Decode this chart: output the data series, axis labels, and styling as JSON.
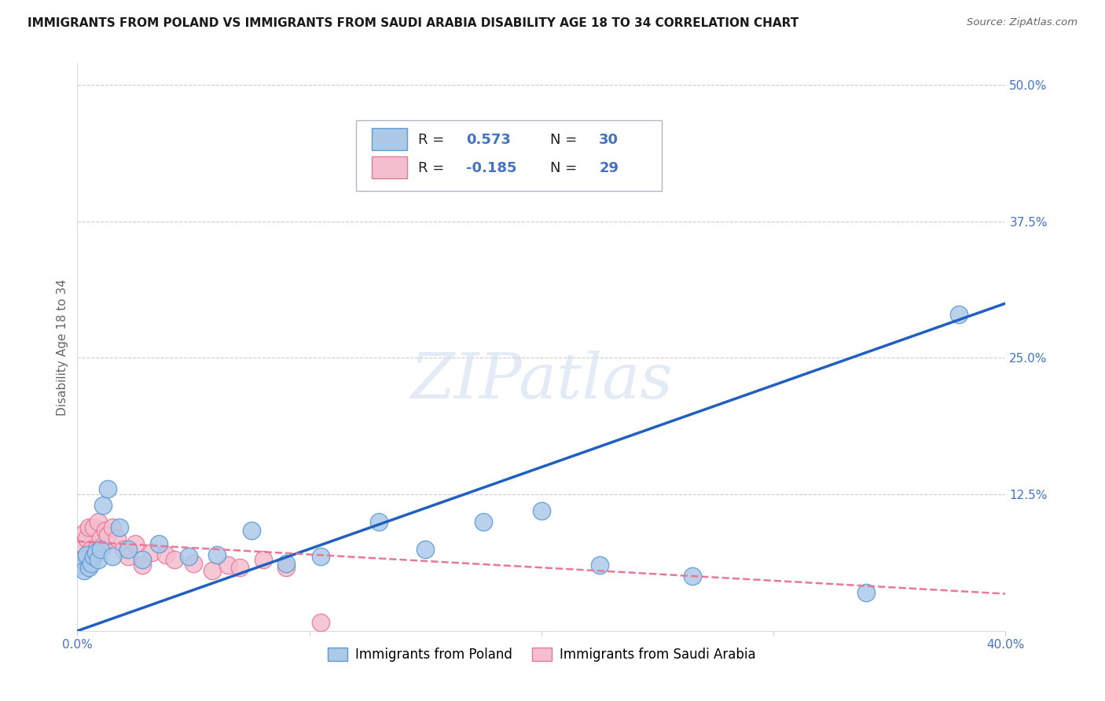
{
  "title": "IMMIGRANTS FROM POLAND VS IMMIGRANTS FROM SAUDI ARABIA DISABILITY AGE 18 TO 34 CORRELATION CHART",
  "source": "Source: ZipAtlas.com",
  "ylabel": "Disability Age 18 to 34",
  "xlim": [
    0.0,
    0.4
  ],
  "ylim": [
    0.0,
    0.52
  ],
  "xticks": [
    0.0,
    0.1,
    0.2,
    0.3,
    0.4
  ],
  "xticklabels": [
    "0.0%",
    "",
    "",
    "",
    "40.0%"
  ],
  "yticks": [
    0.0,
    0.125,
    0.25,
    0.375,
    0.5
  ],
  "yticklabels": [
    "",
    "12.5%",
    "25.0%",
    "37.5%",
    "50.0%"
  ],
  "background_color": "#ffffff",
  "grid_color": "#cccccc",
  "watermark": "ZIPatlas",
  "poland_color": "#adc9e8",
  "poland_edge_color": "#5b9bd5",
  "saudi_color": "#f5bece",
  "saudi_edge_color": "#e87898",
  "poland_r": 0.573,
  "poland_n": 30,
  "saudi_r": -0.185,
  "saudi_n": 29,
  "poland_line_color": "#2060c0",
  "saudi_line_color": "#e87898",
  "tick_color": "#4472c4",
  "label_color": "#666666",
  "poland_x": [
    0.001,
    0.002,
    0.003,
    0.004,
    0.005,
    0.006,
    0.007,
    0.008,
    0.009,
    0.01,
    0.011,
    0.013,
    0.015,
    0.018,
    0.022,
    0.028,
    0.035,
    0.048,
    0.06,
    0.075,
    0.09,
    0.105,
    0.13,
    0.15,
    0.175,
    0.2,
    0.225,
    0.265,
    0.34,
    0.38
  ],
  "poland_y": [
    0.06,
    0.065,
    0.055,
    0.07,
    0.058,
    0.062,
    0.068,
    0.072,
    0.065,
    0.075,
    0.115,
    0.13,
    0.068,
    0.095,
    0.075,
    0.065,
    0.08,
    0.068,
    0.07,
    0.092,
    0.062,
    0.068,
    0.1,
    0.075,
    0.1,
    0.11,
    0.06,
    0.05,
    0.035,
    0.29
  ],
  "saudi_x": [
    0.001,
    0.002,
    0.003,
    0.004,
    0.005,
    0.006,
    0.007,
    0.008,
    0.009,
    0.01,
    0.011,
    0.012,
    0.013,
    0.015,
    0.017,
    0.02,
    0.022,
    0.025,
    0.028,
    0.032,
    0.038,
    0.042,
    0.05,
    0.058,
    0.065,
    0.07,
    0.08,
    0.09,
    0.105
  ],
  "saudi_y": [
    0.06,
    0.08,
    0.09,
    0.085,
    0.095,
    0.075,
    0.095,
    0.075,
    0.1,
    0.085,
    0.078,
    0.092,
    0.088,
    0.095,
    0.085,
    0.075,
    0.068,
    0.08,
    0.06,
    0.072,
    0.07,
    0.065,
    0.062,
    0.055,
    0.06,
    0.058,
    0.065,
    0.058,
    0.008
  ],
  "poland_line_intercept": 0.0,
  "poland_line_slope": 0.75,
  "saudi_line_intercept": 0.082,
  "saudi_line_slope": -0.12
}
